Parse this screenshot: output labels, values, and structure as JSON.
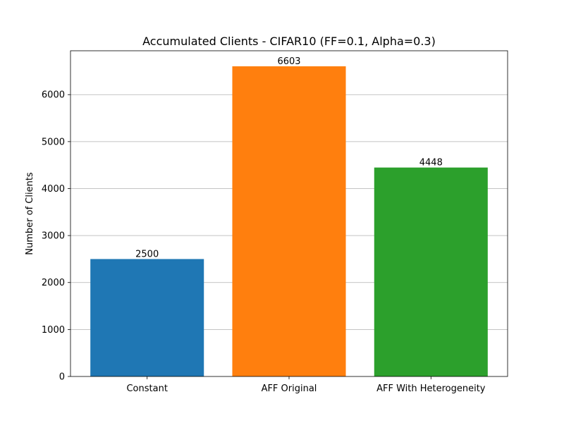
{
  "chart_data": {
    "type": "bar",
    "title": "Accumulated Clients - CIFAR10 (FF=0.1, Alpha=0.3)",
    "xlabel": "",
    "ylabel": "Number of Clients",
    "categories": [
      "Constant",
      "AFF Original",
      "AFF With Heterogeneity"
    ],
    "values": [
      2500,
      6603,
      4448
    ],
    "data_labels": [
      "2500",
      "6603",
      "4448"
    ],
    "colors": [
      "#1f77b4",
      "#ff7f0e",
      "#2ca02c"
    ],
    "ylim": [
      0,
      6934
    ],
    "yticks": [
      0,
      1000,
      2000,
      3000,
      4000,
      5000,
      6000
    ],
    "grid": "y"
  }
}
